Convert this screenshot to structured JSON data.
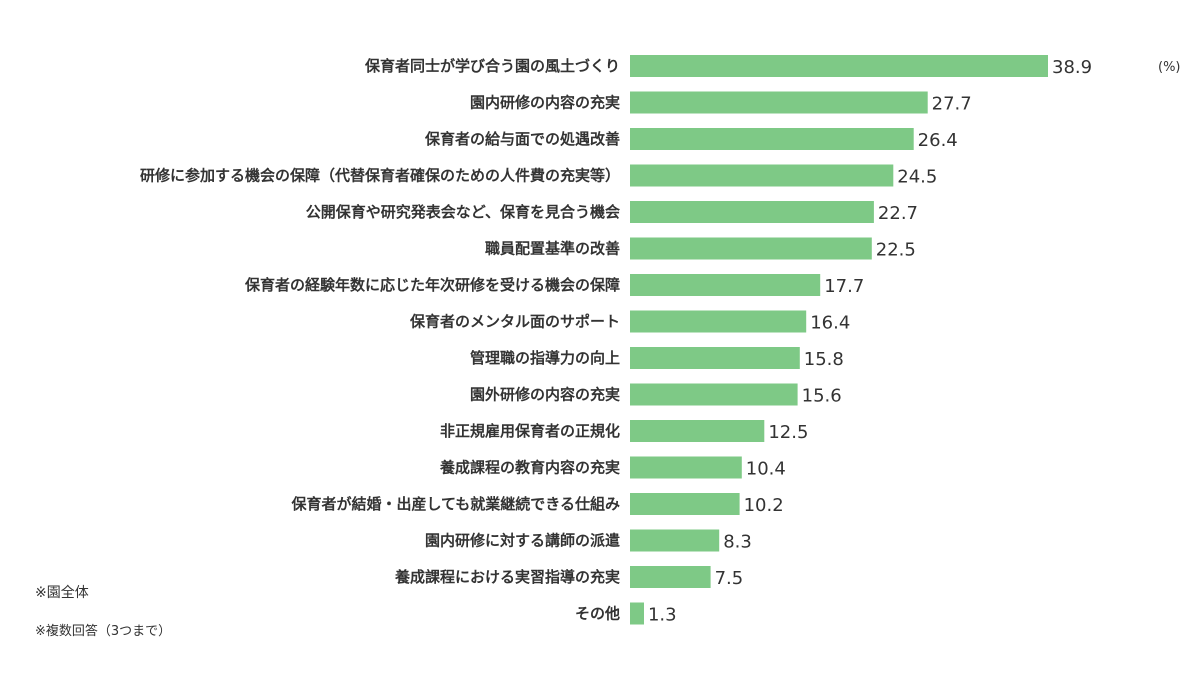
{
  "chart_data": {
    "type": "bar",
    "orientation": "horizontal",
    "unit": "(%)",
    "categories": [
      "保育者同士が学び合う園の風土づくり",
      "園内研修の内容の充実",
      "保育者の給与面での処遇改善",
      "研修に参加する機会の保障（代替保育者確保のための人件費の充実等）",
      "公開保育や研究発表会など、保育を見合う機会",
      "職員配置基準の改善",
      "保育者の経験年数に応じた年次研修を受ける機会の保障",
      "保育者のメンタル面のサポート",
      "管理職の指導力の向上",
      "園外研修の内容の充実",
      "非正規雇用保育者の正規化",
      "養成課程の教育内容の充実",
      "保育者が結婚・出産しても就業継続できる仕組み",
      "園内研修に対する講師の派遣",
      "養成課程における実習指導の充実",
      "その他"
    ],
    "values": [
      38.9,
      27.7,
      26.4,
      24.5,
      22.7,
      22.5,
      17.7,
      16.4,
      15.8,
      15.6,
      12.5,
      10.4,
      10.2,
      8.3,
      7.5,
      1.3
    ],
    "value_labels": [
      "38.9",
      "27.7",
      "26.4",
      "24.5",
      "22.7",
      "22.5",
      "17.7",
      "16.4",
      "15.8",
      "15.6",
      "12.5",
      "10.4",
      "10.2",
      "8.3",
      "7.5",
      "1.3"
    ],
    "xlim": [
      0,
      38.9
    ],
    "bar_color": "#7ec986",
    "grid": false,
    "legend": "none"
  },
  "notes": {
    "scope": "※園全体",
    "answer_type": "※複数回答（3つまで）"
  }
}
